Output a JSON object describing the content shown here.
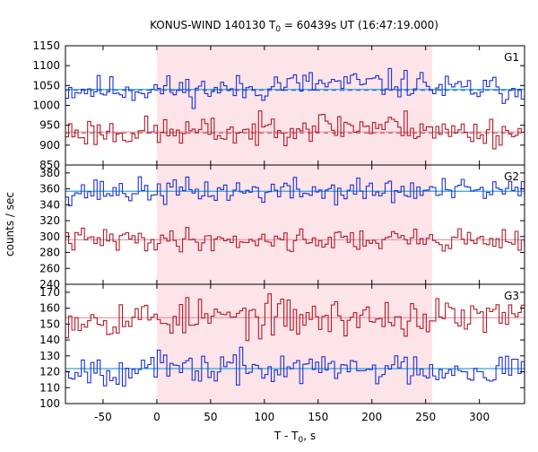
{
  "chart_data": {
    "type": "line",
    "title_main": "KONUS-WIND 140130 T",
    "title_sub": "0",
    "title_rest": " = 60439s UT (16:47:19.000)",
    "xlabel_main": "T - T",
    "xlabel_sub": "0",
    "xlabel_rest": ", s",
    "ylabel": "counts / sec",
    "xlim": [
      -85,
      342
    ],
    "xticks": [
      -50,
      0,
      50,
      100,
      150,
      200,
      250,
      300
    ],
    "shaded_region": [
      0,
      256
    ],
    "grid": false,
    "colors": {
      "upper_series": "#1c2fd6",
      "lower_series": "#b01c2a",
      "upper_mean": "#2aa7d9",
      "lower_mean": "#e79aa8",
      "shade": "#fde4e8"
    },
    "panels": [
      {
        "name": "G1",
        "ylim": [
          850,
          1150
        ],
        "yticks": [
          850,
          900,
          950,
          1000,
          1050,
          1100,
          1150
        ],
        "series": [
          {
            "mean": 1040,
            "amp": 35,
            "seed": 11
          },
          {
            "mean": 933,
            "amp": 38,
            "seed": 23
          }
        ]
      },
      {
        "name": "G2",
        "ylim": [
          240,
          390
        ],
        "yticks": [
          240,
          260,
          280,
          300,
          320,
          340,
          360,
          380
        ],
        "series": [
          {
            "mean": 357,
            "amp": 16,
            "seed": 37
          },
          {
            "mean": 296,
            "amp": 14,
            "seed": 41
          }
        ]
      },
      {
        "name": "G3",
        "ylim": [
          100,
          175
        ],
        "yticks": [
          100,
          110,
          120,
          130,
          140,
          150,
          160,
          170
        ],
        "series": [
          {
            "mean": 154,
            "amp": 12,
            "seed": 53
          },
          {
            "mean": 122,
            "amp": 10,
            "seed": 67
          }
        ]
      }
    ]
  }
}
